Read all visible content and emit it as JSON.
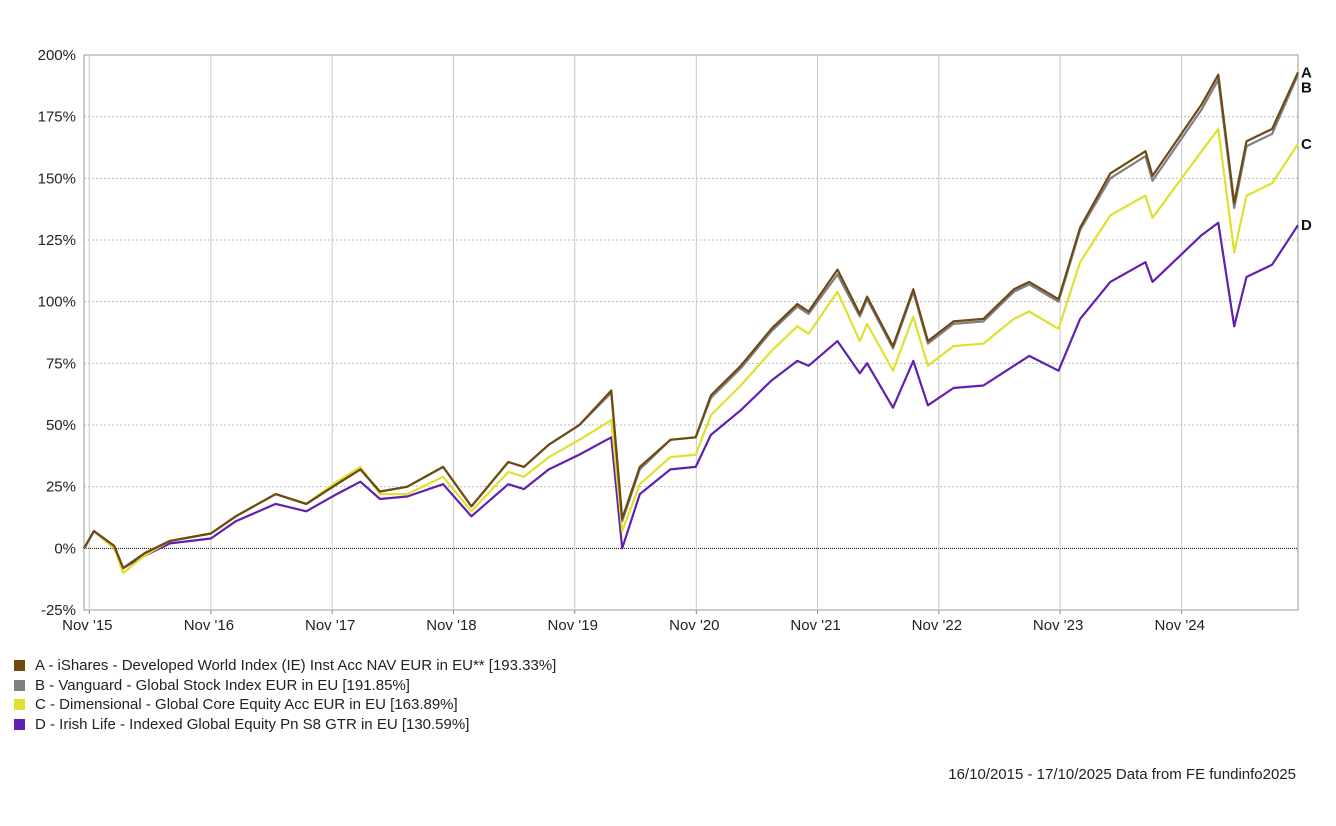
{
  "chart_data": {
    "type": "line",
    "x_tick_labels": [
      "Nov '15",
      "Nov '16",
      "Nov '17",
      "Nov '18",
      "Nov '19",
      "Nov '20",
      "Nov '21",
      "Nov '22",
      "Nov '23",
      "Nov '24"
    ],
    "y_tick_labels": [
      "200%",
      "175%",
      "150%",
      "125%",
      "100%",
      "75%",
      "50%",
      "25%",
      "0%",
      "-25%"
    ],
    "ylim": [
      -25,
      200
    ],
    "xlim": [
      "2015-10-16",
      "2025-10-17"
    ],
    "grid": true,
    "x": [
      "2015-10-16",
      "2015-11-15",
      "2016-01-15",
      "2016-02-11",
      "2016-04-15",
      "2016-07-01",
      "2016-11-01",
      "2017-01-15",
      "2017-05-15",
      "2017-08-15",
      "2017-11-15",
      "2018-01-25",
      "2018-03-25",
      "2018-06-15",
      "2018-10-01",
      "2018-12-25",
      "2019-04-15",
      "2019-06-01",
      "2019-08-15",
      "2019-11-15",
      "2020-02-19",
      "2020-03-23",
      "2020-05-15",
      "2020-08-15",
      "2020-10-30",
      "2020-12-15",
      "2021-03-15",
      "2021-06-15",
      "2021-09-01",
      "2021-10-05",
      "2021-12-31",
      "2022-03-08",
      "2022-03-30",
      "2022-06-16",
      "2022-08-16",
      "2022-09-29",
      "2022-12-15",
      "2023-03-15",
      "2023-06-15",
      "2023-07-31",
      "2023-10-27",
      "2023-12-31",
      "2024-03-31",
      "2024-07-15",
      "2024-08-05",
      "2024-12-31",
      "2025-02-19",
      "2025-04-08",
      "2025-05-15",
      "2025-07-31",
      "2025-10-17"
    ],
    "series": [
      {
        "name": "A - iShares - Developed World Index (IE) Inst Acc NAV EUR in EU** [193.33%]",
        "label": "A",
        "color": "#6e4a12",
        "values": [
          0,
          7,
          1,
          -8,
          -2,
          3,
          6,
          13,
          22,
          18,
          26,
          32,
          23,
          25,
          33,
          17,
          35,
          33,
          42,
          50,
          64,
          12,
          33,
          44,
          45,
          62,
          74,
          89,
          99,
          96,
          113,
          95,
          102,
          82,
          105,
          84,
          92,
          93,
          105,
          108,
          101,
          130,
          152,
          161,
          151,
          180,
          192,
          140,
          165,
          170,
          193
        ]
      },
      {
        "name": "B - Vanguard - Global Stock Index EUR in EU [191.85%]",
        "label": "B",
        "color": "#808080",
        "values": [
          0,
          7,
          1,
          -8,
          -2,
          3,
          6,
          13,
          22,
          18,
          26,
          32,
          23,
          25,
          33,
          17,
          35,
          33,
          42,
          50,
          63,
          11,
          32,
          44,
          45,
          61,
          73,
          88,
          98,
          95,
          111,
          94,
          101,
          81,
          104,
          83,
          91,
          92,
          104,
          107,
          100,
          129,
          150,
          159,
          149,
          178,
          190,
          138,
          163,
          168,
          192
        ]
      },
      {
        "name": "C - Dimensional - Global Core Equity Acc EUR in EU [163.89%]",
        "label": "C",
        "color": "#e0e030",
        "values": [
          0,
          7,
          0,
          -10,
          -3,
          3,
          6,
          13,
          22,
          18,
          27,
          33,
          22,
          22,
          29,
          15,
          31,
          29,
          37,
          44,
          52,
          7,
          26,
          37,
          38,
          54,
          66,
          80,
          90,
          87,
          104,
          84,
          91,
          72,
          94,
          74,
          82,
          83,
          93,
          96,
          89,
          116,
          135,
          143,
          134,
          161,
          170,
          120,
          143,
          148,
          164
        ]
      },
      {
        "name": "D - Irish Life - Indexed Global Equity Pn S8 GTR in EU [130.59%]",
        "label": "D",
        "color": "#6020b0",
        "values": [
          0,
          7,
          0,
          -8,
          -3,
          2,
          4,
          11,
          18,
          15,
          22,
          27,
          20,
          21,
          26,
          13,
          26,
          24,
          32,
          38,
          45,
          0,
          22,
          32,
          33,
          46,
          56,
          68,
          76,
          74,
          84,
          71,
          75,
          57,
          76,
          58,
          65,
          66,
          74,
          78,
          72,
          93,
          108,
          116,
          108,
          127,
          132,
          90,
          110,
          115,
          131
        ]
      }
    ],
    "legend_position": "bottom-left",
    "footer": "16/10/2015 - 17/10/2025 Data from FE fundinfo2025"
  }
}
